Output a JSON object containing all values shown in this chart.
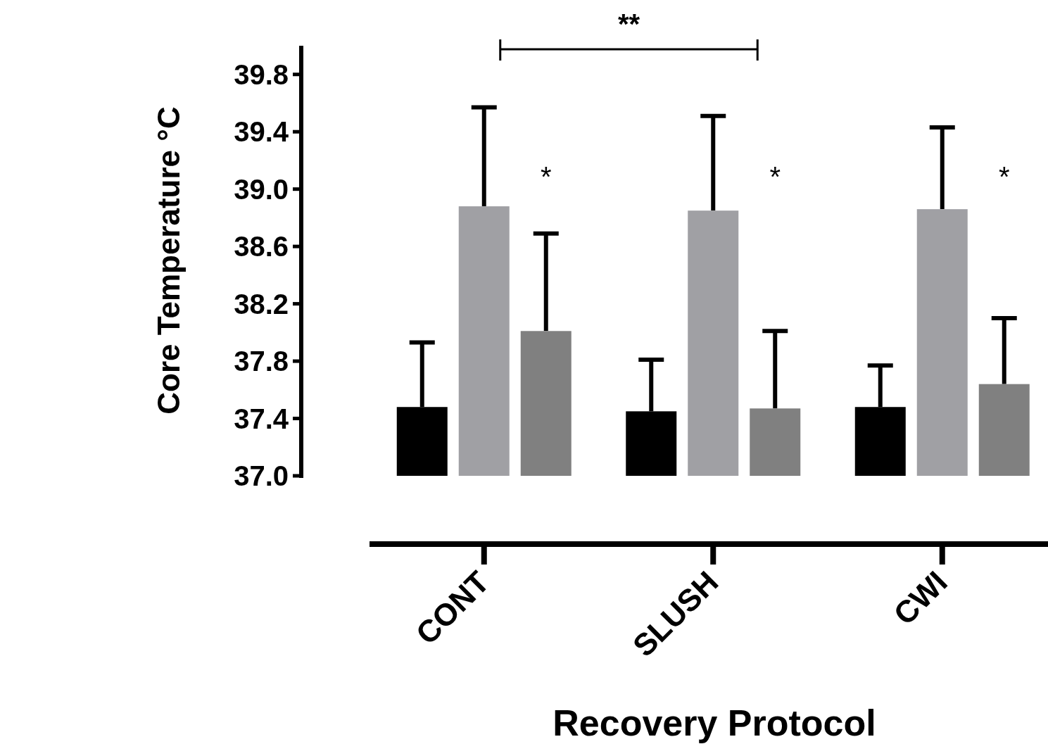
{
  "chart_data": {
    "type": "bar",
    "xlabel": "Recovery Protocol",
    "ylabel": "Core Temperature °C",
    "categories": [
      "CONT",
      "SLUSH",
      "CWI"
    ],
    "series": [
      {
        "color": "#000000",
        "values": [
          37.48,
          37.45,
          37.48
        ],
        "errors": [
          [
            37.48,
            37.93
          ],
          [
            37.45,
            37.81
          ],
          [
            37.48,
            37.77
          ]
        ]
      },
      {
        "color": "#a0a0a4",
        "values": [
          38.88,
          38.85,
          38.86
        ],
        "errors": [
          [
            38.88,
            39.57
          ],
          [
            38.85,
            39.51
          ],
          [
            38.86,
            39.43
          ]
        ]
      },
      {
        "color": "#808080",
        "values": [
          38.01,
          37.47,
          37.64
        ],
        "errors": [
          [
            38.01,
            38.69
          ],
          [
            37.47,
            38.01
          ],
          [
            37.64,
            38.1
          ]
        ]
      }
    ],
    "ylim": [
      37,
      40
    ],
    "yticks": [
      {
        "value": 37,
        "label": "37.0"
      },
      {
        "value": 37.4,
        "label": "37.4"
      },
      {
        "value": 37.8,
        "label": "37.8"
      },
      {
        "value": 38.2,
        "label": "38.2"
      },
      {
        "value": 38.6,
        "label": "38.6"
      },
      {
        "value": 39,
        "label": "39.0"
      },
      {
        "value": 39.4,
        "label": "39.4"
      },
      {
        "value": 39.8,
        "label": "39.8"
      }
    ],
    "grid": false,
    "annotations": [
      "**",
      "*",
      "*",
      "*"
    ]
  }
}
